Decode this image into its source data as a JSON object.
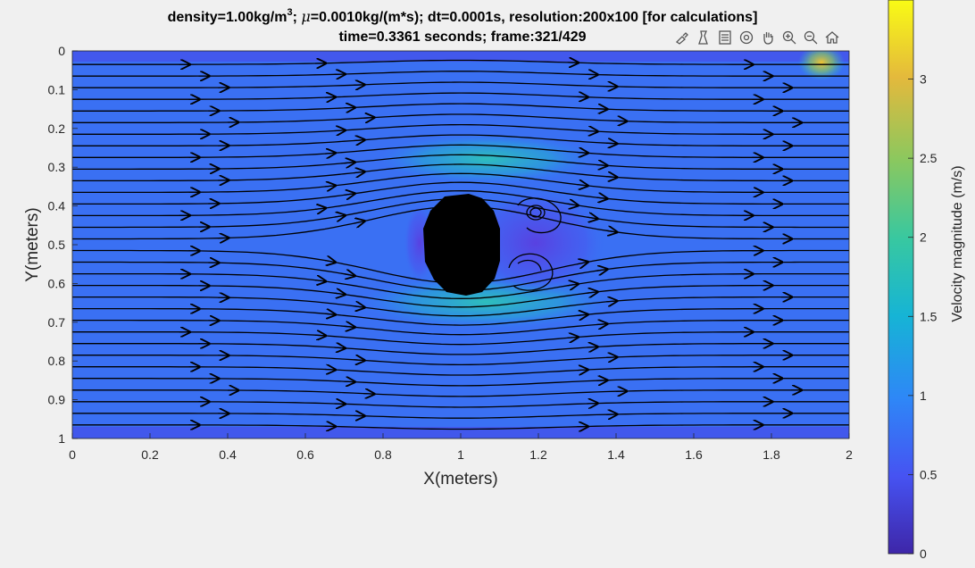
{
  "chart_data": {
    "type": "heatmap",
    "title_line1_parts": [
      "density=1.00kg/m",
      "3",
      "; ",
      "μ",
      "=0.0010kg/(m*s); dt=0.0001s, resolution:200x100 [for calculations]"
    ],
    "title_line2": "time=0.3361 seconds; frame:321/429",
    "xlabel": "X(meters)",
    "ylabel": "Y(meters)",
    "xlim": [
      0,
      2
    ],
    "ylim": [
      0,
      1
    ],
    "y_reversed": true,
    "xticks": [
      "0",
      "0.2",
      "0.4",
      "0.6",
      "0.8",
      "1",
      "1.2",
      "1.4",
      "1.6",
      "1.8",
      "2"
    ],
    "yticks": [
      "0",
      "0.1",
      "0.2",
      "0.3",
      "0.4",
      "0.5",
      "0.6",
      "0.7",
      "0.8",
      "0.9",
      "1"
    ],
    "colorbar": {
      "label": "Velocity magnitude (m/s)",
      "range": [
        0,
        3.5
      ],
      "ticks": [
        "0",
        "0.5",
        "1",
        "1.5",
        "2",
        "2.5",
        "3"
      ],
      "colormap": "parula"
    },
    "obstacle": {
      "shape": "ellipse",
      "cx": 1.0,
      "cy": 0.5,
      "rx": 0.1,
      "ry": 0.13,
      "color": "#000000"
    },
    "freestream_velocity": 1.0,
    "max_velocity_near_obstacle": 1.8,
    "streamline_color": "#000000"
  },
  "toolbar": {
    "icons": [
      "brush-icon",
      "data-tips-icon",
      "legend-icon",
      "rotate-icon",
      "pan-icon",
      "zoom-in-icon",
      "zoom-out-icon",
      "home-icon"
    ]
  }
}
